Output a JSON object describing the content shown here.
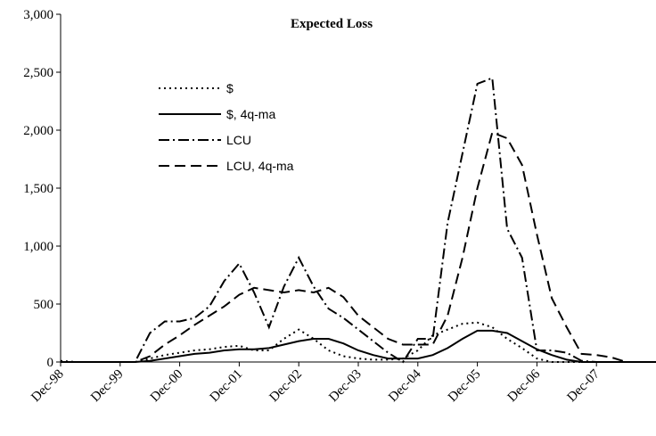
{
  "chart_data": {
    "type": "line",
    "title": "Expected Loss",
    "categories": [
      "Dec-98",
      null,
      null,
      null,
      "Dec-99",
      null,
      null,
      null,
      "Dec-00",
      null,
      null,
      null,
      "Dec-01",
      null,
      null,
      null,
      "Dec-02",
      null,
      null,
      null,
      "Dec-03",
      null,
      null,
      null,
      "Dec-04",
      null,
      null,
      null,
      "Dec-05",
      null,
      null,
      null,
      "Dec-06",
      null,
      null,
      null,
      "Dec-07",
      null,
      null,
      null,
      null
    ],
    "ylim": [
      0,
      3000
    ],
    "yticks": [
      0,
      500,
      {
        "value": 1000,
        "label": "1,000"
      },
      {
        "value": 1500,
        "label": "1,500"
      },
      {
        "value": 2000,
        "label": "2,000"
      },
      {
        "value": 2500,
        "label": "2,500"
      },
      {
        "value": 3000,
        "label": "3,000"
      }
    ],
    "series": [
      {
        "name": "$",
        "color": "#000000",
        "dash": "2,4",
        "values": [
          10,
          0,
          0,
          0,
          0,
          0,
          30,
          60,
          80,
          100,
          110,
          130,
          140,
          100,
          100,
          200,
          280,
          200,
          100,
          50,
          30,
          20,
          20,
          30,
          100,
          230,
          280,
          330,
          340,
          300,
          200,
          120,
          30,
          0,
          0,
          0,
          0,
          0,
          0,
          0,
          0
        ]
      },
      {
        "name": "$, 4q-ma",
        "color": "#000000",
        "dash": "none",
        "values": [
          0,
          0,
          0,
          0,
          0,
          0,
          10,
          30,
          50,
          70,
          80,
          100,
          110,
          110,
          120,
          150,
          180,
          200,
          200,
          160,
          100,
          60,
          30,
          30,
          30,
          60,
          120,
          200,
          270,
          270,
          250,
          180,
          110,
          60,
          20,
          0,
          0,
          0,
          0,
          0,
          0
        ]
      },
      {
        "name": "LCU",
        "color": "#000000",
        "dash": "12,4,2,4",
        "values": [
          0,
          0,
          0,
          0,
          0,
          0,
          250,
          350,
          350,
          380,
          480,
          700,
          850,
          600,
          300,
          650,
          900,
          650,
          460,
          380,
          280,
          180,
          80,
          0,
          200,
          200,
          1200,
          1800,
          2400,
          2450,
          1150,
          900,
          100,
          100,
          80,
          10,
          0,
          0,
          0,
          0,
          0
        ]
      },
      {
        "name": "LCU, 4q-ma",
        "color": "#000000",
        "dash": "12,6",
        "values": [
          0,
          0,
          0,
          0,
          0,
          0,
          50,
          150,
          230,
          320,
          400,
          480,
          580,
          640,
          620,
          600,
          620,
          600,
          640,
          560,
          400,
          300,
          200,
          150,
          150,
          150,
          400,
          900,
          1500,
          1980,
          1930,
          1700,
          1100,
          550,
          300,
          70,
          60,
          40,
          0,
          0,
          0
        ]
      }
    ]
  }
}
